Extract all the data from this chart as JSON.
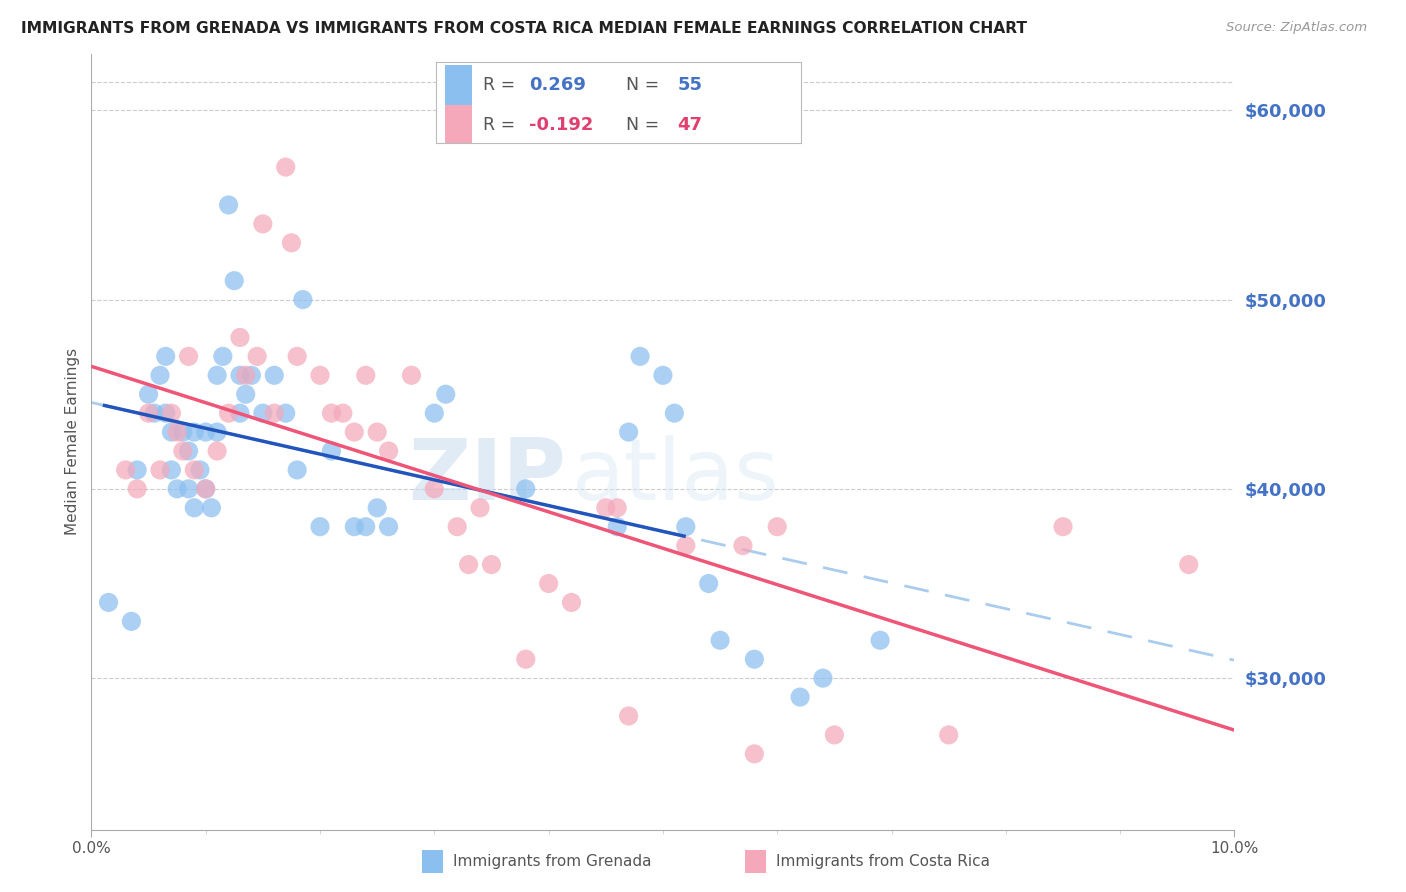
{
  "title": "IMMIGRANTS FROM GRENADA VS IMMIGRANTS FROM COSTA RICA MEDIAN FEMALE EARNINGS CORRELATION CHART",
  "source": "Source: ZipAtlas.com",
  "ylabel": "Median Female Earnings",
  "xlim": [
    0.0,
    10.0
  ],
  "ylim": [
    22000,
    63000
  ],
  "right_yticks": [
    30000,
    40000,
    50000,
    60000
  ],
  "right_ytick_labels": [
    "$30,000",
    "$40,000",
    "$50,000",
    "$60,000"
  ],
  "grenada_color": "#8BBFEF",
  "costa_rica_color": "#F4A8BA",
  "grenada_line_color": "#2255BB",
  "costa_rica_line_color": "#EE5577",
  "dashed_line_color": "#AACCEE",
  "watermark_zip": "ZIP",
  "watermark_atlas": "atlas",
  "grenada_x": [
    0.15,
    0.35,
    0.4,
    0.5,
    0.55,
    0.6,
    0.65,
    0.65,
    0.7,
    0.7,
    0.75,
    0.8,
    0.85,
    0.85,
    0.9,
    0.9,
    0.95,
    1.0,
    1.0,
    1.05,
    1.1,
    1.1,
    1.15,
    1.2,
    1.25,
    1.3,
    1.3,
    1.35,
    1.4,
    1.5,
    1.6,
    1.7,
    1.8,
    1.85,
    2.0,
    2.1,
    2.3,
    2.4,
    2.5,
    2.6,
    3.0,
    3.1,
    3.8,
    4.6,
    4.7,
    4.8,
    5.0,
    5.1,
    5.2,
    5.4,
    5.5,
    5.8,
    6.2,
    6.4,
    6.9
  ],
  "grenada_y": [
    34000,
    33000,
    41000,
    45000,
    44000,
    46000,
    47000,
    44000,
    43000,
    41000,
    40000,
    43000,
    42000,
    40000,
    39000,
    43000,
    41000,
    40000,
    43000,
    39000,
    46000,
    43000,
    47000,
    55000,
    51000,
    46000,
    44000,
    45000,
    46000,
    44000,
    46000,
    44000,
    41000,
    50000,
    38000,
    42000,
    38000,
    38000,
    39000,
    38000,
    44000,
    45000,
    40000,
    38000,
    43000,
    47000,
    46000,
    44000,
    38000,
    35000,
    32000,
    31000,
    29000,
    30000,
    32000
  ],
  "costa_rica_x": [
    0.3,
    0.4,
    0.5,
    0.6,
    0.7,
    0.75,
    0.8,
    0.85,
    0.9,
    1.0,
    1.1,
    1.2,
    1.3,
    1.35,
    1.45,
    1.5,
    1.6,
    1.7,
    1.75,
    1.8,
    2.0,
    2.1,
    2.2,
    2.3,
    2.4,
    2.5,
    2.6,
    2.8,
    3.0,
    3.2,
    3.3,
    3.4,
    3.5,
    3.8,
    4.0,
    4.2,
    4.5,
    4.6,
    4.7,
    5.2,
    5.7,
    5.8,
    6.0,
    6.5,
    7.5,
    8.5,
    9.6
  ],
  "costa_rica_y": [
    41000,
    40000,
    44000,
    41000,
    44000,
    43000,
    42000,
    47000,
    41000,
    40000,
    42000,
    44000,
    48000,
    46000,
    47000,
    54000,
    44000,
    57000,
    53000,
    47000,
    46000,
    44000,
    44000,
    43000,
    46000,
    43000,
    42000,
    46000,
    40000,
    38000,
    36000,
    39000,
    36000,
    31000,
    35000,
    34000,
    39000,
    39000,
    28000,
    37000,
    37000,
    26000,
    38000,
    27000,
    27000,
    38000,
    36000
  ]
}
